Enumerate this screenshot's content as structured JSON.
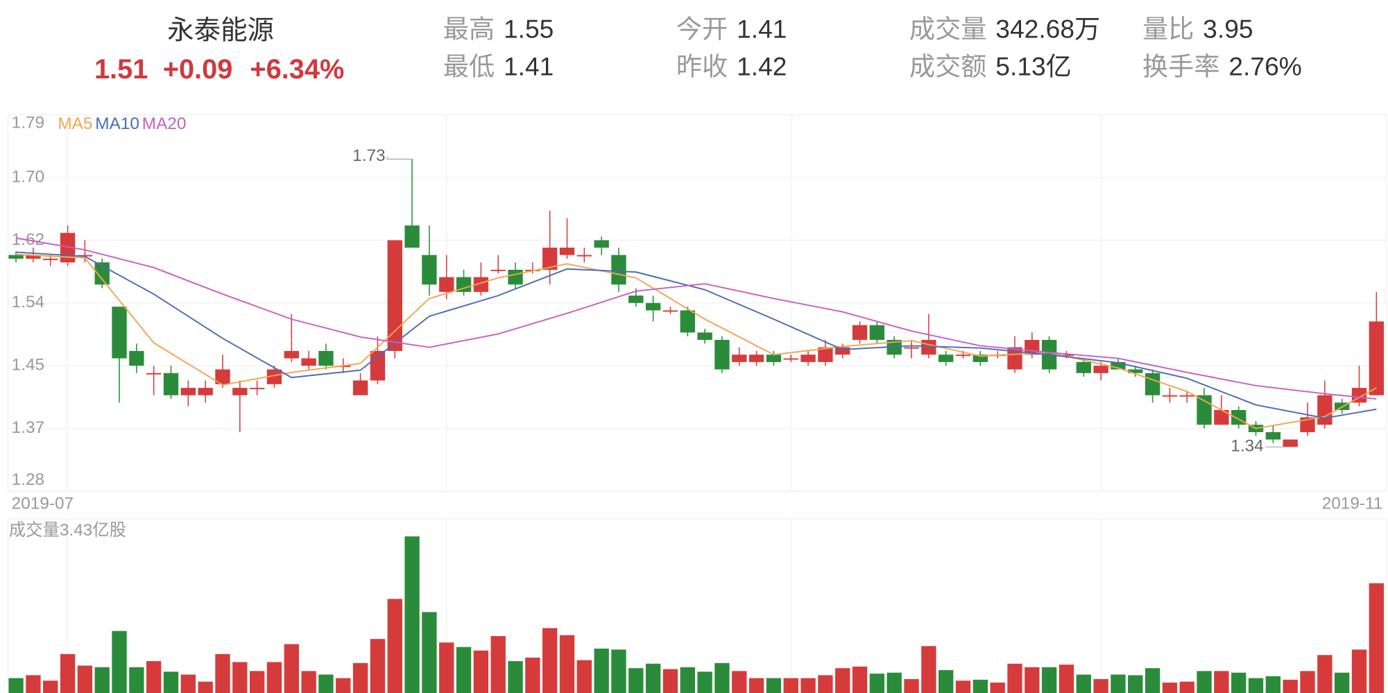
{
  "header": {
    "title": "永泰能源",
    "price": "1.51",
    "change": "+0.09",
    "change_pct": "+6.34%",
    "stats": [
      {
        "label": "最高",
        "value": "1.55"
      },
      {
        "label": "今开",
        "value": "1.41"
      },
      {
        "label": "成交量",
        "value": "342.68万"
      },
      {
        "label": "量比",
        "value": "3.95"
      },
      {
        "label": "最低",
        "value": "1.41"
      },
      {
        "label": "昨收",
        "value": "1.42"
      },
      {
        "label": "成交额",
        "value": "5.13亿"
      },
      {
        "label": "换手率",
        "value": "2.76%"
      }
    ]
  },
  "chart_data": {
    "type": "candlestick",
    "ylim": [
      1.28,
      1.79
    ],
    "yticks": [
      1.28,
      {
        "value": 1.365,
        "label": "1.37"
      },
      1.45,
      {
        "value": 1.535,
        "label": "1.54"
      },
      1.62,
      {
        "value": 1.705,
        "label": "1.70"
      },
      1.79
    ],
    "grid": true,
    "xlabels": [
      "2019-07",
      "2019-11"
    ],
    "up_color": "#d63b3b",
    "down_color": "#2a8c3a",
    "open": [
      1.6,
      1.595,
      1.595,
      1.59,
      1.6,
      1.59,
      1.53,
      1.47,
      1.44,
      1.44,
      1.41,
      1.41,
      1.425,
      1.41,
      1.42,
      1.425,
      1.46,
      1.45,
      1.47,
      1.45,
      1.41,
      1.43,
      1.47,
      1.64,
      1.6,
      1.55,
      1.57,
      1.55,
      1.58,
      1.58,
      1.58,
      1.58,
      1.6,
      1.6,
      1.62,
      1.6,
      1.545,
      1.535,
      1.525,
      1.525,
      1.495,
      1.485,
      1.455,
      1.455,
      1.465,
      1.46,
      1.455,
      1.455,
      1.465,
      1.485,
      1.505,
      1.485,
      1.475,
      1.465,
      1.465,
      1.465,
      1.465,
      1.465,
      1.445,
      1.465,
      1.485,
      1.465,
      1.455,
      1.44,
      1.455,
      1.445,
      1.44,
      1.41,
      1.41,
      1.41,
      1.37,
      1.39,
      1.37,
      1.36,
      1.34,
      1.36,
      1.37,
      1.4,
      1.4,
      1.41
    ],
    "high": [
      1.605,
      1.61,
      1.6,
      1.64,
      1.62,
      1.595,
      1.53,
      1.48,
      1.45,
      1.45,
      1.43,
      1.43,
      1.465,
      1.43,
      1.43,
      1.45,
      1.52,
      1.47,
      1.48,
      1.46,
      1.44,
      1.49,
      1.62,
      1.73,
      1.64,
      1.6,
      1.58,
      1.59,
      1.6,
      1.59,
      1.59,
      1.66,
      1.65,
      1.61,
      1.625,
      1.61,
      1.555,
      1.545,
      1.53,
      1.53,
      1.5,
      1.49,
      1.475,
      1.47,
      1.47,
      1.465,
      1.47,
      1.485,
      1.48,
      1.51,
      1.51,
      1.49,
      1.485,
      1.52,
      1.47,
      1.47,
      1.47,
      1.47,
      1.49,
      1.495,
      1.49,
      1.47,
      1.46,
      1.455,
      1.46,
      1.45,
      1.445,
      1.42,
      1.415,
      1.42,
      1.41,
      1.395,
      1.375,
      1.37,
      1.35,
      1.4,
      1.43,
      1.405,
      1.45,
      1.55
    ],
    "low": [
      1.59,
      1.59,
      1.585,
      1.585,
      1.59,
      1.555,
      1.4,
      1.44,
      1.41,
      1.405,
      1.395,
      1.4,
      1.42,
      1.36,
      1.41,
      1.42,
      1.455,
      1.445,
      1.445,
      1.44,
      1.41,
      1.425,
      1.46,
      1.61,
      1.545,
      1.54,
      1.545,
      1.545,
      1.575,
      1.555,
      1.575,
      1.56,
      1.595,
      1.59,
      1.6,
      1.55,
      1.53,
      1.51,
      1.52,
      1.49,
      1.48,
      1.44,
      1.45,
      1.45,
      1.45,
      1.455,
      1.45,
      1.45,
      1.46,
      1.48,
      1.48,
      1.46,
      1.46,
      1.46,
      1.45,
      1.46,
      1.45,
      1.46,
      1.44,
      1.46,
      1.44,
      1.46,
      1.435,
      1.43,
      1.445,
      1.435,
      1.4,
      1.4,
      1.4,
      1.365,
      1.37,
      1.365,
      1.355,
      1.345,
      1.34,
      1.355,
      1.365,
      1.385,
      1.395,
      1.41
    ],
    "close": [
      1.595,
      1.6,
      1.595,
      1.63,
      1.6,
      1.56,
      1.46,
      1.45,
      1.44,
      1.41,
      1.42,
      1.42,
      1.445,
      1.42,
      1.42,
      1.445,
      1.47,
      1.46,
      1.45,
      1.45,
      1.43,
      1.47,
      1.62,
      1.61,
      1.56,
      1.57,
      1.55,
      1.57,
      1.58,
      1.56,
      1.58,
      1.61,
      1.61,
      1.6,
      1.61,
      1.56,
      1.535,
      1.525,
      1.525,
      1.495,
      1.485,
      1.445,
      1.465,
      1.465,
      1.455,
      1.46,
      1.465,
      1.475,
      1.475,
      1.505,
      1.485,
      1.465,
      1.475,
      1.485,
      1.455,
      1.465,
      1.455,
      1.465,
      1.475,
      1.485,
      1.445,
      1.465,
      1.44,
      1.45,
      1.445,
      1.44,
      1.41,
      1.41,
      1.41,
      1.37,
      1.39,
      1.37,
      1.36,
      1.35,
      1.35,
      1.38,
      1.41,
      1.39,
      1.42,
      1.51
    ],
    "annotations": [
      {
        "index": 23,
        "value": 1.73
      },
      {
        "index": 74,
        "value": 1.34
      }
    ],
    "series": [
      {
        "name": "MA5",
        "color": "#f3a552",
        "x": [
          0,
          4,
          8,
          12,
          16,
          20,
          24,
          28,
          32,
          36,
          40,
          44,
          48,
          52,
          56,
          60,
          64,
          68,
          72,
          76,
          79
        ],
        "values": [
          1.601,
          1.596,
          1.481,
          1.424,
          1.441,
          1.453,
          1.541,
          1.569,
          1.588,
          1.569,
          1.513,
          1.465,
          1.476,
          1.484,
          1.463,
          1.468,
          1.447,
          1.415,
          1.365,
          1.381,
          1.42
        ]
      },
      {
        "name": "MA10",
        "color": "#4a6cb3",
        "x": [
          0,
          4,
          8,
          12,
          16,
          20,
          24,
          28,
          32,
          36,
          40,
          44,
          48,
          52,
          56,
          60,
          64,
          68,
          72,
          76,
          79
        ],
        "values": [
          1.604,
          1.598,
          1.547,
          1.487,
          1.434,
          1.444,
          1.517,
          1.545,
          1.581,
          1.577,
          1.553,
          1.513,
          1.472,
          1.477,
          1.474,
          1.465,
          1.454,
          1.433,
          1.397,
          1.379,
          1.391
        ]
      },
      {
        "name": "MA20",
        "color": "#c85fc0",
        "x": [
          0,
          4,
          8,
          12,
          16,
          20,
          24,
          28,
          32,
          36,
          40,
          44,
          48,
          52,
          56,
          60,
          64,
          68,
          72,
          76,
          79
        ],
        "values": [
          1.623,
          1.607,
          1.583,
          1.547,
          1.513,
          1.489,
          1.475,
          1.493,
          1.521,
          1.551,
          1.561,
          1.541,
          1.523,
          1.497,
          1.477,
          1.468,
          1.46,
          1.441,
          1.423,
          1.412,
          1.405
        ]
      }
    ],
    "volume_label": "成交量3.43亿股",
    "vlim": [
      0,
      5.44
    ],
    "volume": [
      0.47,
      0.56,
      0.39,
      1.22,
      0.86,
      0.81,
      1.94,
      0.81,
      1.0,
      0.67,
      0.58,
      0.36,
      1.22,
      0.97,
      0.69,
      0.97,
      1.53,
      0.69,
      0.58,
      0.47,
      0.94,
      1.69,
      2.94,
      4.89,
      2.53,
      1.58,
      1.44,
      1.33,
      1.78,
      1.0,
      1.11,
      2.03,
      1.81,
      1.03,
      1.39,
      1.36,
      0.78,
      0.92,
      0.75,
      0.81,
      0.67,
      0.94,
      0.69,
      0.47,
      0.47,
      0.47,
      0.47,
      0.56,
      0.78,
      0.83,
      0.61,
      0.64,
      0.44,
      1.47,
      0.72,
      0.39,
      0.42,
      0.33,
      0.92,
      0.81,
      0.81,
      0.89,
      0.58,
      0.44,
      0.58,
      0.56,
      0.78,
      0.33,
      0.36,
      0.69,
      0.69,
      0.64,
      0.47,
      0.53,
      0.42,
      0.69,
      1.19,
      0.64,
      1.36,
      3.43
    ]
  }
}
